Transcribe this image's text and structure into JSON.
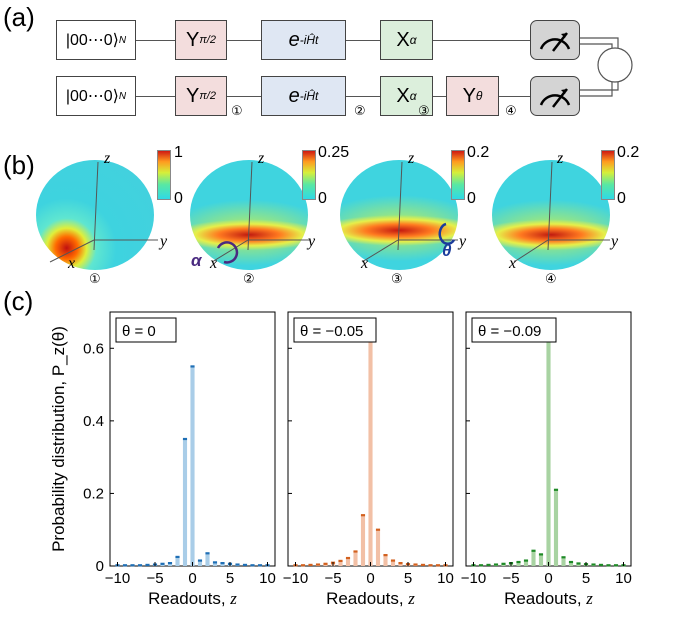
{
  "panels": {
    "a": "(a)",
    "b": "(b)",
    "c": "(c)"
  },
  "circuit": {
    "init": "|00⋯0⟩",
    "init_sub": "N",
    "gate_y": "Y",
    "gate_y_sub": "π/2",
    "gate_u": "e",
    "gate_u_sup": "-iĤt",
    "gate_x": "X",
    "gate_x_sub": "α",
    "gate_ytheta": "Y",
    "gate_ytheta_sub": "θ",
    "steps": [
      "①",
      "②",
      "③",
      "④"
    ]
  },
  "spheres": [
    {
      "label": "①",
      "cmax": "1",
      "cmin": "0",
      "axes": {
        "z": "z",
        "x": "x",
        "y": "y"
      }
    },
    {
      "label": "②",
      "cmax": "0.25",
      "cmin": "0",
      "axes": {
        "z": "z",
        "x": "x",
        "y": "y"
      },
      "rot": "α"
    },
    {
      "label": "③",
      "cmax": "0.2",
      "cmin": "0",
      "axes": {
        "z": "z",
        "x": "x",
        "y": "y"
      },
      "rot": "θ"
    },
    {
      "label": "④",
      "cmax": "0.2",
      "cmin": "0",
      "axes": {
        "z": "z",
        "x": "x",
        "y": "y"
      }
    }
  ],
  "chart_data": [
    {
      "type": "bar",
      "legend": "θ = 0",
      "color_fill": "#a9cde8",
      "color_err": "#1f6fb5",
      "x": [
        -10,
        -9,
        -8,
        -7,
        -6,
        -5,
        -4,
        -3,
        -2,
        -1,
        0,
        1,
        2,
        3,
        4,
        5,
        6,
        7,
        8,
        9,
        10
      ],
      "values": [
        0.002,
        0.002,
        0.002,
        0.002,
        0.003,
        0.004,
        0.006,
        0.008,
        0.025,
        0.35,
        0.55,
        0.015,
        0.035,
        0.01,
        0.008,
        0.006,
        0.004,
        0.003,
        0.002,
        0.002,
        0.002
      ],
      "xlabel": "Readouts, z",
      "ylabel": "Probability distribution, P_z(θ)",
      "ylim": [
        0,
        0.7
      ],
      "xlim": [
        -11,
        11
      ],
      "xticks": [
        "−10",
        "−5",
        "0",
        "5",
        "10"
      ],
      "yticks": [
        "0",
        "0.2",
        "0.4",
        "0.6"
      ]
    },
    {
      "type": "bar",
      "legend": "θ = −0.05",
      "color_fill": "#f2c0a6",
      "color_err": "#d2601e",
      "x": [
        -10,
        -9,
        -8,
        -7,
        -6,
        -5,
        -4,
        -3,
        -2,
        -1,
        0,
        1,
        2,
        3,
        4,
        5,
        6,
        7,
        8,
        9,
        10
      ],
      "values": [
        0.002,
        0.002,
        0.003,
        0.004,
        0.006,
        0.009,
        0.014,
        0.022,
        0.04,
        0.14,
        0.66,
        0.1,
        0.03,
        0.015,
        0.008,
        0.005,
        0.004,
        0.003,
        0.002,
        0.002,
        0.002
      ],
      "xlabel": "Readouts, z",
      "ylim": [
        0,
        0.7
      ],
      "xlim": [
        -11,
        11
      ],
      "xticks": [
        "−10",
        "−5",
        "0",
        "5",
        "10"
      ]
    },
    {
      "type": "bar",
      "legend": "θ = −0.09",
      "color_fill": "#a8d3a2",
      "color_err": "#1e8a26",
      "x": [
        -10,
        -9,
        -8,
        -7,
        -6,
        -5,
        -4,
        -3,
        -2,
        -1,
        0,
        1,
        2,
        3,
        4,
        5,
        6,
        7,
        8,
        9,
        10
      ],
      "values": [
        0.002,
        0.002,
        0.003,
        0.004,
        0.006,
        0.008,
        0.011,
        0.015,
        0.042,
        0.032,
        0.64,
        0.21,
        0.024,
        0.011,
        0.007,
        0.005,
        0.004,
        0.003,
        0.002,
        0.002,
        0.002
      ],
      "xlabel": "Readouts, z",
      "ylim": [
        0,
        0.7
      ],
      "xlim": [
        -11,
        11
      ],
      "xticks": [
        "−10",
        "−5",
        "0",
        "5",
        "10"
      ]
    }
  ]
}
